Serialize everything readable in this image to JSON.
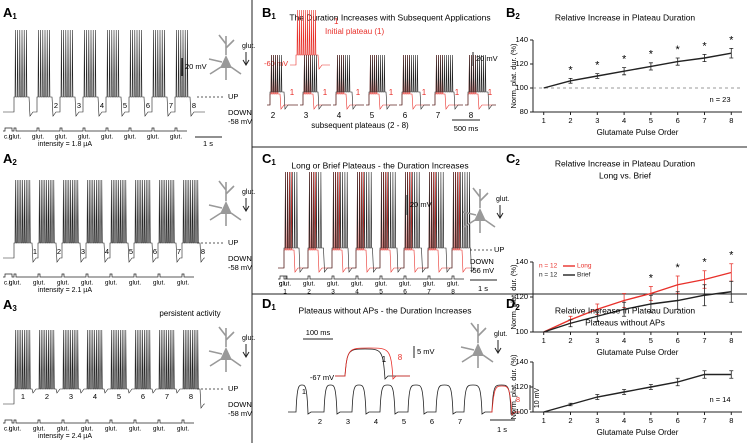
{
  "panels": {
    "A1": {
      "label": {
        "letter": "A",
        "sub": "1"
      },
      "scale_v": "20 mV",
      "glut": "glut.",
      "up": "UP",
      "down": "DOWN",
      "down_mv": "-58 mV",
      "stim_labels": [
        "c.i.",
        "glut.",
        "glut.",
        "glut.",
        "glut.",
        "glut.",
        "glut.",
        "glut.",
        "glut."
      ],
      "pulse_numbers": [
        2,
        3,
        4,
        5,
        6,
        7,
        8
      ],
      "intensity": "intensity = 1.8 µA",
      "scale_t": "1 s"
    },
    "A2": {
      "label": {
        "letter": "A",
        "sub": "2"
      },
      "glut": "glut.",
      "up": "UP",
      "down": "DOWN",
      "down_mv": "-58 mV",
      "stim_labels": [
        "c.i.",
        "glut.",
        "glut.",
        "glut.",
        "glut.",
        "glut.",
        "glut.",
        "glut.",
        "glut."
      ],
      "pulse_numbers": [
        1,
        2,
        3,
        4,
        5,
        6,
        7,
        8
      ],
      "intensity": "intensity = 2.1 µA"
    },
    "A3": {
      "label": {
        "letter": "A",
        "sub": "3"
      },
      "note": "persistent activity",
      "glut": "glut.",
      "up": "UP",
      "down": "DOWN",
      "down_mv": "-58 mV",
      "stim_labels": [
        "c.i.",
        "glut.",
        "glut.",
        "glut.",
        "glut.",
        "glut.",
        "glut.",
        "glut.",
        "glut."
      ],
      "pulse_numbers": [
        1,
        2,
        3,
        4,
        5,
        6,
        7,
        8
      ],
      "intensity": "intensity = 2.4 µA"
    },
    "B1": {
      "label": {
        "letter": "B",
        "sub": "1"
      },
      "title": "The Duration Increases with Subsequent Applications",
      "inset_number": "1",
      "inset_label": "Initial plateau (1)",
      "inset_mv": "-60 mV",
      "scale_v": "20 mV",
      "pulse_numbers": [
        2,
        3,
        4,
        5,
        6,
        7,
        8
      ],
      "red_numbers": [
        1,
        1,
        1,
        1,
        1,
        1,
        1
      ],
      "xlabel": "subsequent plateaus (2 - 8)",
      "scale_t": "500 ms"
    },
    "B2": {
      "label": {
        "letter": "B",
        "sub": "2"
      }
    },
    "C1": {
      "label": {
        "letter": "C",
        "sub": "1"
      },
      "title": "Long or Brief Plateaus - the Duration Increases",
      "scale_v": "20 mV",
      "glut": "glut.",
      "up": "UP",
      "down": "DOWN",
      "down_mv": "-56 mV",
      "stim_labels": [
        "c.i.",
        "glut.",
        "glut.",
        "glut.",
        "glut.",
        "glut.",
        "glut.",
        "glut.",
        "glut."
      ],
      "pulse_numbers": [
        1,
        2,
        3,
        4,
        5,
        6,
        7,
        8
      ],
      "scale_t": "1 s"
    },
    "C2": {
      "label": {
        "letter": "C",
        "sub": "2"
      }
    },
    "D1": {
      "label": {
        "letter": "D",
        "sub": "1"
      },
      "title": "Plateaus without APs - the Duration Increases",
      "inset_scale_t": "100 ms",
      "inset_scale_v": "5 mV",
      "inset_mv": "-67 mV",
      "inset_labels": [
        "1",
        "8"
      ],
      "glut": "glut.",
      "scale_v": "10 mV",
      "scale_t": "1 s",
      "pulse_numbers": [
        1,
        2,
        3,
        4,
        5,
        6,
        7,
        8
      ]
    },
    "D2": {
      "label": {
        "letter": "D",
        "sub": "2"
      }
    }
  },
  "chart_data": [
    {
      "type": "line",
      "title": "Relative Increase in Plateau Duration",
      "x": [
        1,
        2,
        3,
        4,
        5,
        6,
        7,
        8
      ],
      "xlim": [
        0.6,
        8.4
      ],
      "xticks": [
        1,
        2,
        3,
        4,
        5,
        6,
        7,
        8
      ],
      "ylim": [
        80,
        140
      ],
      "yticks": [
        80,
        100,
        120,
        140
      ],
      "xlabel": "Glutamate Pulse Order",
      "ylabel": "Norm. plat. dur. (%)",
      "reference_line": 100,
      "series": [
        {
          "color": "#222222",
          "n_label": "n = 23",
          "values": [
            100,
            106,
            110,
            114,
            118,
            122,
            125,
            129
          ],
          "errors": [
            0,
            2,
            2,
            3,
            3,
            3,
            3,
            4
          ]
        }
      ],
      "annotations": [
        {
          "x": 2,
          "text": "*"
        },
        {
          "x": 3,
          "text": "*"
        },
        {
          "x": 4,
          "text": "*"
        },
        {
          "x": 5,
          "text": "*"
        },
        {
          "x": 6,
          "text": "*"
        },
        {
          "x": 7,
          "text": "*"
        },
        {
          "x": 8,
          "text": "*"
        }
      ]
    },
    {
      "type": "line",
      "title": "Relative Increase in Plateau Duration",
      "subtitle": "Long vs. Brief",
      "x": [
        1,
        2,
        3,
        4,
        5,
        6,
        7,
        8
      ],
      "xlim": [
        0.6,
        8.4
      ],
      "xticks": [
        1,
        2,
        3,
        4,
        5,
        6,
        7,
        8
      ],
      "ylim": [
        100,
        140
      ],
      "yticks": [
        100,
        120,
        140
      ],
      "xlabel": "Glutamate Pulse Order",
      "ylabel": "Norm. plat. dur. (%)",
      "series": [
        {
          "name": "Long",
          "n_label": "n = 12",
          "color": "#e8302a",
          "values": [
            100,
            107,
            113,
            118,
            122,
            127,
            130,
            134
          ],
          "errors": [
            0,
            2,
            3,
            4,
            4,
            5,
            5,
            5
          ]
        },
        {
          "name": "Brief",
          "n_label": "n = 12",
          "color": "#222222",
          "values": [
            100,
            105,
            109,
            113,
            116,
            118,
            121,
            123
          ],
          "errors": [
            0,
            2,
            3,
            4,
            5,
            5,
            6,
            6
          ]
        }
      ],
      "annotations": [
        {
          "x": 5,
          "text": "*"
        },
        {
          "x": 6,
          "text": "*"
        },
        {
          "x": 7,
          "text": "*"
        },
        {
          "x": 8,
          "text": "*"
        }
      ]
    },
    {
      "type": "line",
      "title": "Relative Increase in Plateau Duration",
      "subtitle": "Plateaus without APs",
      "x": [
        1,
        2,
        3,
        4,
        5,
        6,
        7,
        8
      ],
      "xlim": [
        0.6,
        8.4
      ],
      "xticks": [
        1,
        2,
        3,
        4,
        5,
        6,
        7,
        8
      ],
      "ylim": [
        100,
        140
      ],
      "yticks": [
        100,
        120,
        140
      ],
      "xlabel": "Glutamate Pulse Order",
      "ylabel": "Norm. plat. dur. (%)",
      "series": [
        {
          "color": "#222222",
          "n_label": "n = 14",
          "values": [
            100,
            106,
            112,
            116,
            120,
            124,
            130,
            130
          ],
          "errors": [
            0,
            1,
            2,
            2,
            2,
            3,
            3,
            3
          ]
        }
      ]
    }
  ]
}
